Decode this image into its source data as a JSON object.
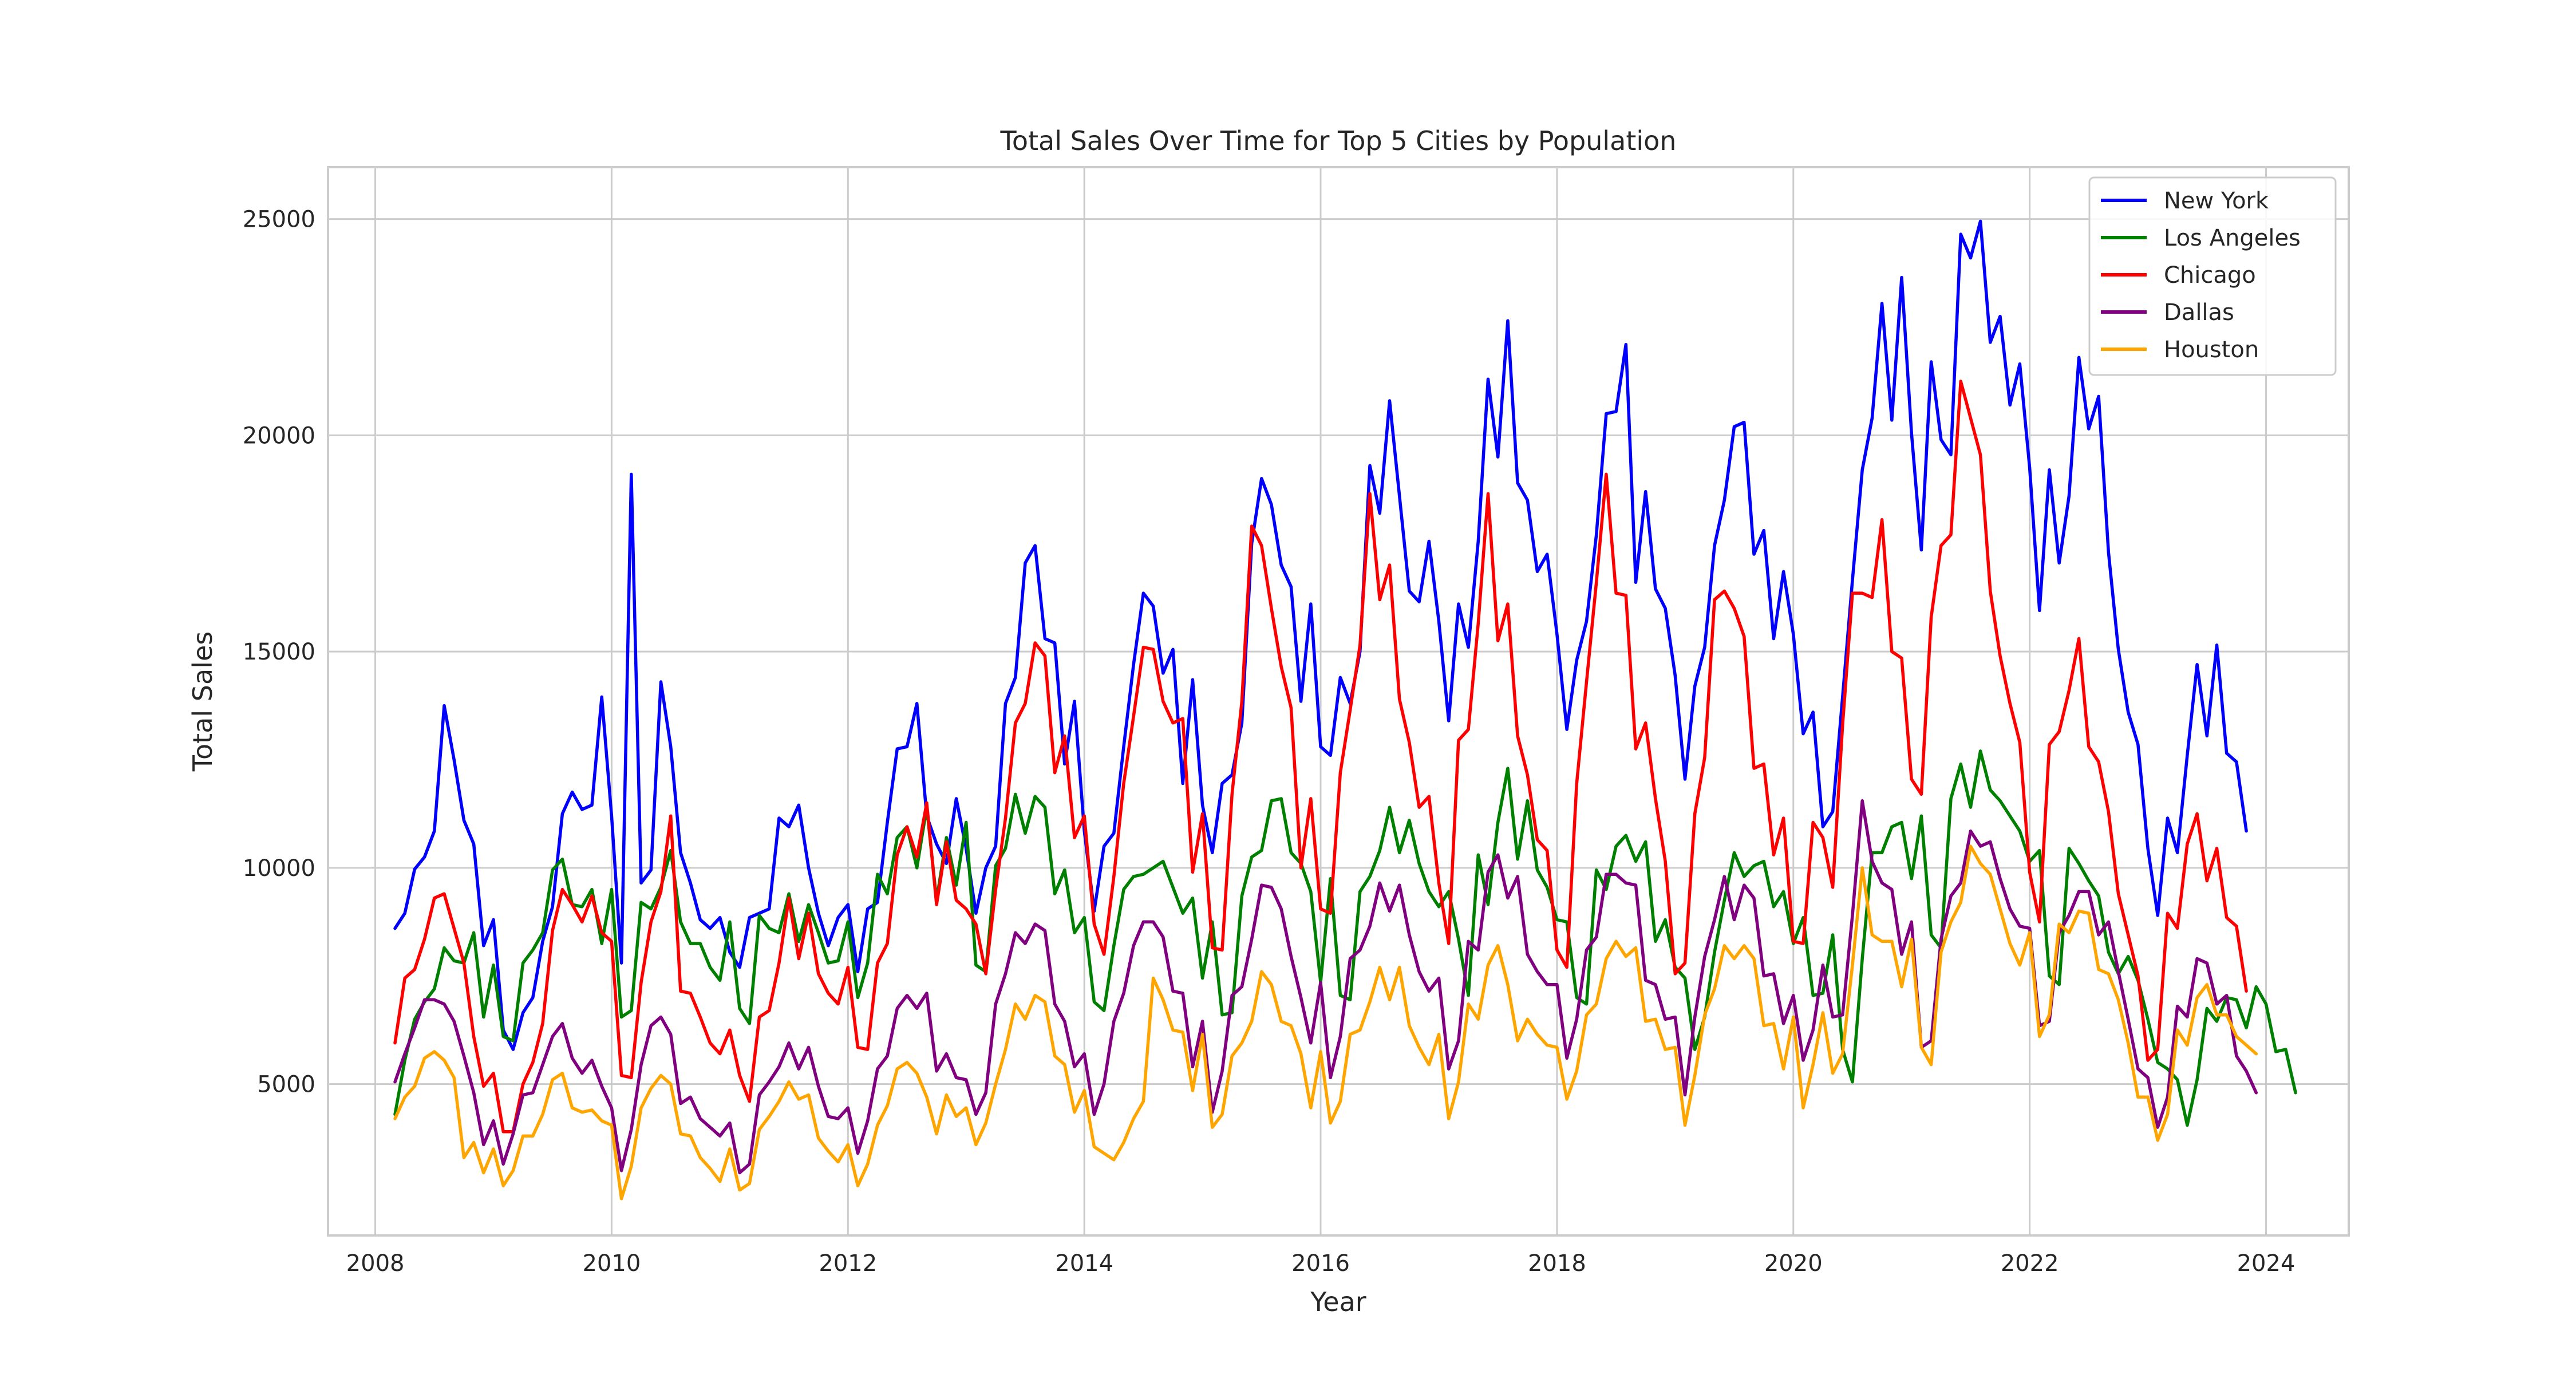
{
  "chart_data": {
    "type": "line",
    "title": "Total Sales Over Time for Top 5 Cities by Population",
    "xlabel": "Year",
    "ylabel": "Total Sales",
    "xlim": [
      2007.6,
      2024.7
    ],
    "ylim": [
      1500,
      26200
    ],
    "x_ticks": [
      2008,
      2010,
      2012,
      2014,
      2016,
      2018,
      2020,
      2022,
      2024
    ],
    "x_tick_labels": [
      "2008",
      "2010",
      "2012",
      "2014",
      "2016",
      "2018",
      "2020",
      "2022",
      "2024"
    ],
    "y_ticks": [
      5000,
      10000,
      15000,
      20000,
      25000
    ],
    "y_tick_labels": [
      "5000",
      "10000",
      "15000",
      "20000",
      "25000"
    ],
    "grid": true,
    "legend_position": "top-right",
    "x_start": "2008-03",
    "x_step": "monthly",
    "series": [
      {
        "name": "New York",
        "color": "#0000ff",
        "values": [
          8600,
          8950,
          9970,
          10250,
          10850,
          13750,
          12500,
          11100,
          10550,
          8200,
          8800,
          6250,
          5800,
          6650,
          7000,
          8300,
          9100,
          11250,
          11750,
          11350,
          11450,
          13950,
          11200,
          7800,
          19100,
          9650,
          9950,
          14300,
          12800,
          10350,
          9650,
          8800,
          8600,
          8850,
          8050,
          7700,
          8850,
          8950,
          9050,
          11150,
          10950,
          11450,
          10000,
          8950,
          8200,
          8850,
          9150,
          7600,
          9050,
          9200,
          11050,
          12750,
          12800,
          13800,
          11200,
          10550,
          10100,
          11600,
          10450,
          8950,
          10000,
          10500,
          13800,
          14400,
          17050,
          17450,
          15300,
          15200,
          12400,
          13850,
          10850,
          9000,
          10500,
          10800,
          12800,
          14700,
          16350,
          16050,
          14500,
          15050,
          11950,
          14350,
          11450,
          10350,
          11950,
          12150,
          13350,
          17500,
          19000,
          18400,
          17000,
          16500,
          13850,
          16100,
          12800,
          12600,
          14400,
          13800,
          15000,
          19300,
          18200,
          20800,
          18600,
          16400,
          16150,
          17550,
          15700,
          13400,
          16100,
          15100,
          17550,
          21300,
          19500,
          22650,
          18900,
          18500,
          16850,
          17250,
          15400,
          13200,
          14800,
          15700,
          17700,
          20500,
          20550,
          22100,
          16600,
          18700,
          16450,
          16000,
          14450,
          12050,
          14200,
          15100,
          17450,
          18500,
          20200,
          20300,
          17250,
          17800,
          15300,
          16850,
          15400,
          13100,
          13600,
          10950,
          11300,
          13950,
          16650,
          19200,
          20400,
          23050,
          20350,
          23650,
          20050,
          17350,
          21700,
          19900,
          19550,
          24650,
          24100,
          24950,
          22150,
          22750,
          20700,
          21650,
          19250,
          15950,
          19200,
          17050,
          18600,
          21800,
          20150,
          20900,
          17300,
          15050,
          13600,
          12850,
          10450,
          8900,
          11150,
          10350,
          12600,
          14700,
          13050,
          15150,
          12650,
          12450,
          10850
        ]
      },
      {
        "name": "Los Angeles",
        "color": "#008000",
        "values": [
          4300,
          5550,
          6500,
          6900,
          7200,
          8150,
          7850,
          7800,
          8500,
          6550,
          7750,
          6100,
          6000,
          7800,
          8100,
          8500,
          9950,
          10200,
          9150,
          9100,
          9500,
          8250,
          9500,
          6550,
          6700,
          9200,
          9050,
          9550,
          10400,
          8750,
          8250,
          8250,
          7700,
          7400,
          8750,
          6750,
          6400,
          8900,
          8600,
          8500,
          9400,
          8300,
          9150,
          8500,
          7800,
          7850,
          8750,
          7000,
          7800,
          9850,
          9400,
          10700,
          10950,
          10000,
          11400,
          9250,
          10700,
          9600,
          11050,
          7750,
          7600,
          10050,
          10450,
          11700,
          10800,
          11650,
          11400,
          9400,
          9950,
          8500,
          8850,
          6900,
          6700,
          8200,
          9500,
          9800,
          9850,
          10000,
          10150,
          9550,
          8950,
          9300,
          7450,
          8750,
          6600,
          6650,
          9350,
          10250,
          10400,
          11550,
          11600,
          10350,
          10100,
          9450,
          7350,
          9750,
          7050,
          6950,
          9450,
          9800,
          10400,
          11400,
          10350,
          11100,
          10100,
          9450,
          9100,
          9450,
          8350,
          7050,
          10300,
          9150,
          11050,
          12300,
          10200,
          11550,
          9950,
          9550,
          8800,
          8750,
          7000,
          6850,
          9950,
          9500,
          10500,
          10750,
          10150,
          10600,
          8300,
          8800,
          7700,
          7450,
          5800,
          6550,
          8050,
          9250,
          10350,
          9800,
          10050,
          10150,
          9100,
          9450,
          8250,
          8850,
          7050,
          7100,
          8450,
          5800,
          5050,
          7900,
          10350,
          10350,
          10950,
          11050,
          9750,
          11200,
          8450,
          8150,
          11600,
          12400,
          11400,
          12700,
          11800,
          11550,
          11200,
          10850,
          10150,
          10400,
          7500,
          7300,
          10450,
          10100,
          9700,
          9350,
          8050,
          7550,
          7950,
          7400,
          6500,
          5500,
          5350,
          5100,
          4050,
          5100,
          6750,
          6450,
          7000,
          6950,
          6300,
          7250,
          6850,
          5750,
          5800,
          4800
        ]
      },
      {
        "name": "Chicago",
        "color": "#ff0000",
        "values": [
          5950,
          7450,
          7650,
          8350,
          9300,
          9400,
          8600,
          7800,
          6100,
          4950,
          5250,
          3900,
          3900,
          5000,
          5500,
          6400,
          8550,
          9500,
          9150,
          8750,
          9350,
          8500,
          8300,
          5200,
          5150,
          7350,
          8750,
          9450,
          11200,
          7150,
          7100,
          6550,
          5950,
          5700,
          6250,
          5200,
          4600,
          6550,
          6700,
          7800,
          9300,
          7900,
          8950,
          7550,
          7100,
          6850,
          7700,
          5850,
          5800,
          7800,
          8250,
          10300,
          10950,
          10250,
          11500,
          9150,
          10600,
          9250,
          9050,
          8700,
          7550,
          9500,
          11150,
          13350,
          13800,
          15200,
          14900,
          12200,
          13050,
          10700,
          11200,
          8700,
          8000,
          9800,
          11950,
          13500,
          15100,
          15050,
          13850,
          13350,
          13450,
          9900,
          11250,
          8150,
          8100,
          11700,
          13850,
          17900,
          17450,
          16000,
          14650,
          13700,
          10000,
          11600,
          9050,
          8950,
          12200,
          13650,
          15150,
          18650,
          16200,
          17000,
          13900,
          12900,
          11400,
          11650,
          9650,
          8250,
          12950,
          13200,
          15650,
          18650,
          15250,
          16100,
          13050,
          12150,
          10650,
          10400,
          8100,
          7700,
          11950,
          14300,
          16600,
          19100,
          16350,
          16300,
          12750,
          13350,
          11600,
          10150,
          7550,
          7800,
          11250,
          12550,
          16200,
          16400,
          16000,
          15350,
          12300,
          12400,
          10300,
          11150,
          8300,
          8250,
          11050,
          10700,
          9550,
          13300,
          16350,
          16350,
          16250,
          18050,
          15000,
          14850,
          12050,
          11700,
          15800,
          17450,
          17700,
          21250,
          20400,
          19550,
          16400,
          14900,
          13800,
          12900,
          9900,
          8750,
          12850,
          13150,
          14100,
          15300,
          12800,
          12450,
          11300,
          9400,
          8450,
          7500,
          5550,
          5800,
          8950,
          8600,
          10550,
          11250,
          9700,
          10450,
          8850,
          8650,
          7150
        ]
      },
      {
        "name": "Dallas",
        "color": "#800080",
        "values": [
          5050,
          5700,
          6300,
          6950,
          6950,
          6850,
          6450,
          5650,
          4800,
          3600,
          4150,
          3150,
          3850,
          4750,
          4800,
          5450,
          6100,
          6400,
          5600,
          5250,
          5550,
          4950,
          4450,
          3000,
          3950,
          5450,
          6350,
          6550,
          6150,
          4550,
          4700,
          4200,
          4000,
          3800,
          4100,
          2950,
          3150,
          4750,
          5050,
          5400,
          5950,
          5350,
          5850,
          4950,
          4250,
          4200,
          4450,
          3400,
          4150,
          5350,
          5650,
          6750,
          7050,
          6750,
          7100,
          5300,
          5700,
          5150,
          5100,
          4300,
          4800,
          6850,
          7550,
          8500,
          8250,
          8700,
          8550,
          6850,
          6450,
          5400,
          5700,
          4300,
          5000,
          6450,
          7100,
          8200,
          8750,
          8750,
          8400,
          7150,
          7100,
          5400,
          6450,
          4350,
          5300,
          7050,
          7250,
          8350,
          9600,
          9550,
          9050,
          7950,
          7000,
          5950,
          7350,
          5150,
          6100,
          7900,
          8100,
          8650,
          9650,
          9000,
          9600,
          8450,
          7600,
          7150,
          7450,
          5350,
          6000,
          8300,
          8100,
          9900,
          10300,
          9300,
          9800,
          8000,
          7600,
          7300,
          7300,
          5600,
          6500,
          8100,
          8400,
          9850,
          9850,
          9650,
          9600,
          7400,
          7300,
          6500,
          6550,
          4750,
          6550,
          7950,
          8800,
          9800,
          8800,
          9600,
          9300,
          7500,
          7550,
          6400,
          7050,
          5550,
          6250,
          7750,
          6550,
          6600,
          8900,
          11550,
          10150,
          9650,
          9500,
          8000,
          8750,
          5850,
          6000,
          8350,
          9350,
          9650,
          10850,
          10500,
          10600,
          9750,
          9050,
          8650,
          8600,
          6350,
          6450,
          8500,
          8900,
          9450,
          9450,
          8450,
          8750,
          7600,
          6500,
          5350,
          5150,
          4000,
          4700,
          6800,
          6550,
          7900,
          7800,
          6850,
          7050,
          5650,
          5300,
          4800
        ]
      },
      {
        "name": "Houston",
        "color": "#ffa500",
        "values": [
          4200,
          4700,
          4950,
          5600,
          5750,
          5550,
          5150,
          3300,
          3650,
          2950,
          3500,
          2650,
          3000,
          3800,
          3800,
          4300,
          5100,
          5250,
          4450,
          4350,
          4400,
          4150,
          4050,
          2350,
          3100,
          4450,
          4900,
          5200,
          5000,
          3850,
          3800,
          3300,
          3050,
          2750,
          3500,
          2550,
          2700,
          3950,
          4250,
          4600,
          5050,
          4650,
          4750,
          3750,
          3450,
          3200,
          3600,
          2650,
          3150,
          4050,
          4500,
          5350,
          5500,
          5250,
          4700,
          3850,
          4750,
          4250,
          4450,
          3600,
          4100,
          5000,
          5800,
          6850,
          6500,
          7050,
          6900,
          5650,
          5450,
          4350,
          4850,
          3550,
          3400,
          3250,
          3650,
          4200,
          4600,
          7450,
          6950,
          6250,
          6200,
          4850,
          6150,
          4000,
          4300,
          5650,
          5950,
          6450,
          7600,
          7300,
          6450,
          6350,
          5700,
          4450,
          5750,
          4100,
          4600,
          6150,
          6250,
          6900,
          7700,
          6950,
          7700,
          6350,
          5850,
          5450,
          6150,
          4200,
          5050,
          6850,
          6500,
          7750,
          8200,
          7300,
          6000,
          6500,
          6150,
          5900,
          5850,
          4650,
          5300,
          6600,
          6850,
          7900,
          8300,
          7950,
          8150,
          6450,
          6500,
          5800,
          5850,
          4050,
          5200,
          6600,
          7200,
          8200,
          7900,
          8200,
          7900,
          6350,
          6400,
          5350,
          6550,
          4450,
          5450,
          6650,
          5250,
          5700,
          7750,
          10000,
          8450,
          8300,
          8300,
          7250,
          8350,
          5850,
          5450,
          8050,
          8750,
          9200,
          10500,
          10100,
          9850,
          9050,
          8250,
          7750,
          8500,
          6100,
          6600,
          8700,
          8500,
          9000,
          8950,
          7650,
          7550,
          6950,
          5950,
          4700,
          4700,
          3700,
          4300,
          6250,
          5900,
          7000,
          7300,
          6600,
          6600,
          6100,
          5900,
          5700
        ]
      }
    ]
  }
}
